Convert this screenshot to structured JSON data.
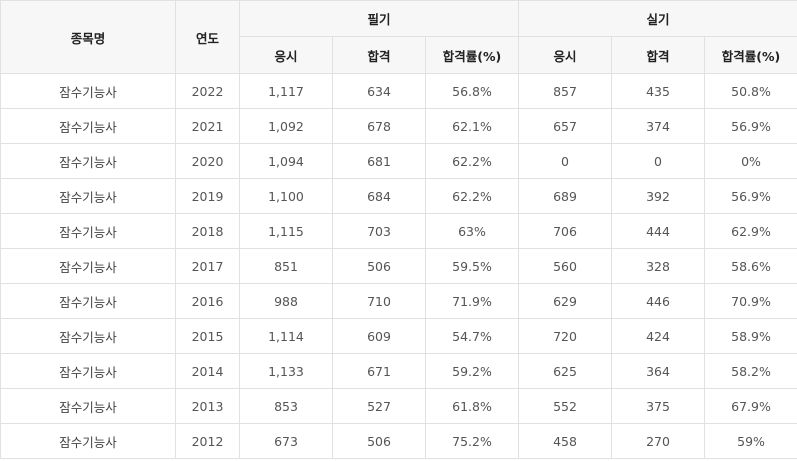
{
  "header": {
    "item_name": "종목명",
    "year": "연도",
    "written": "필기",
    "practical": "실기",
    "applicants": "응시",
    "passed": "합격",
    "pass_rate": "합격률(%)"
  },
  "rows": [
    {
      "name": "잠수기능사",
      "year": "2022",
      "w_apply": "1,117",
      "w_pass": "634",
      "w_rate": "56.8%",
      "p_apply": "857",
      "p_pass": "435",
      "p_rate": "50.8%"
    },
    {
      "name": "잠수기능사",
      "year": "2021",
      "w_apply": "1,092",
      "w_pass": "678",
      "w_rate": "62.1%",
      "p_apply": "657",
      "p_pass": "374",
      "p_rate": "56.9%"
    },
    {
      "name": "잠수기능사",
      "year": "2020",
      "w_apply": "1,094",
      "w_pass": "681",
      "w_rate": "62.2%",
      "p_apply": "0",
      "p_pass": "0",
      "p_rate": "0%"
    },
    {
      "name": "잠수기능사",
      "year": "2019",
      "w_apply": "1,100",
      "w_pass": "684",
      "w_rate": "62.2%",
      "p_apply": "689",
      "p_pass": "392",
      "p_rate": "56.9%"
    },
    {
      "name": "잠수기능사",
      "year": "2018",
      "w_apply": "1,115",
      "w_pass": "703",
      "w_rate": "63%",
      "p_apply": "706",
      "p_pass": "444",
      "p_rate": "62.9%"
    },
    {
      "name": "잠수기능사",
      "year": "2017",
      "w_apply": "851",
      "w_pass": "506",
      "w_rate": "59.5%",
      "p_apply": "560",
      "p_pass": "328",
      "p_rate": "58.6%"
    },
    {
      "name": "잠수기능사",
      "year": "2016",
      "w_apply": "988",
      "w_pass": "710",
      "w_rate": "71.9%",
      "p_apply": "629",
      "p_pass": "446",
      "p_rate": "70.9%"
    },
    {
      "name": "잠수기능사",
      "year": "2015",
      "w_apply": "1,114",
      "w_pass": "609",
      "w_rate": "54.7%",
      "p_apply": "720",
      "p_pass": "424",
      "p_rate": "58.9%"
    },
    {
      "name": "잠수기능사",
      "year": "2014",
      "w_apply": "1,133",
      "w_pass": "671",
      "w_rate": "59.2%",
      "p_apply": "625",
      "p_pass": "364",
      "p_rate": "58.2%"
    },
    {
      "name": "잠수기능사",
      "year": "2013",
      "w_apply": "853",
      "w_pass": "527",
      "w_rate": "61.8%",
      "p_apply": "552",
      "p_pass": "375",
      "p_rate": "67.9%"
    },
    {
      "name": "잠수기능사",
      "year": "2012",
      "w_apply": "673",
      "w_pass": "506",
      "w_rate": "75.2%",
      "p_apply": "458",
      "p_pass": "270",
      "p_rate": "59%"
    }
  ]
}
